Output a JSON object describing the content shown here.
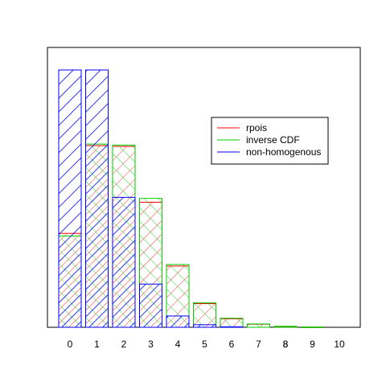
{
  "chart_data": {
    "type": "bar",
    "categories": [
      "0",
      "1",
      "2",
      "3",
      "4",
      "5",
      "6",
      "7",
      "8",
      "9",
      "10"
    ],
    "series": [
      {
        "name": "rpois",
        "color": "#ff0000",
        "values": [
          365,
          706,
          703,
          486,
          238,
          92,
          33,
          12,
          3,
          1,
          0
        ]
      },
      {
        "name": "inverse CDF",
        "color": "#00cc00",
        "values": [
          355,
          712,
          708,
          501,
          244,
          95,
          35,
          13,
          4,
          1,
          0
        ]
      },
      {
        "name": "non-homogenous",
        "color": "#0000ff",
        "values": [
          1000,
          1000,
          505,
          168,
          44,
          10,
          2,
          0,
          0,
          0,
          0
        ]
      }
    ],
    "extra_tick_labels": [
      "8"
    ],
    "ylim": [
      0,
      1000
    ],
    "legend": "top-right",
    "grid": false,
    "hatch": {
      "red_green_angle": "crosshatch 45 / -45",
      "blue_angle": "45"
    }
  }
}
